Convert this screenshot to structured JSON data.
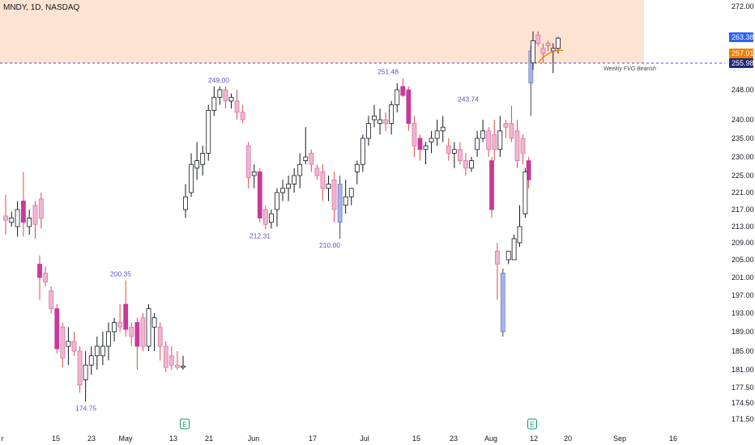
{
  "header": {
    "ticker": "MNDY, 1D, NASDAQ"
  },
  "colors": {
    "up_body": "#ffffff",
    "up_border": "#131722",
    "down_dark": "#c8399a",
    "down_light": "#f2b5d0",
    "blue_body": "#a5b3e6",
    "wick_red": "#e04a4a",
    "zone_fill": "#fde3d2",
    "dash_line": "#4a4ad6",
    "tag_blue": "#2962ff",
    "tag_orange": "#f57c00",
    "tag_navy": "#1e2a78",
    "earn_green": "#0b9a6e"
  },
  "chart_data": {
    "type": "candlestick",
    "title": "MNDY, 1D, NASDAQ",
    "y_axis": {
      "ticks": [
        "272.00",
        "263.38",
        "257.01",
        "255.98",
        "248.00",
        "240.00",
        "235.00",
        "230.00",
        "225.00",
        "221.00",
        "217.00",
        "213.00",
        "209.00",
        "205.00",
        "201.00",
        "197.00",
        "193.00",
        "189.00",
        "185.00",
        "181.00",
        "177.50",
        "174.50",
        "171.50"
      ]
    },
    "x_axis": {
      "ticks": [
        "r",
        "15",
        "23",
        "May",
        "13",
        "21",
        "Jun",
        "17",
        "Jul",
        "15",
        "23",
        "Aug",
        "12",
        "20",
        "Sep",
        "16"
      ]
    },
    "candles": [
      {
        "o": 215.5,
        "h": 220.5,
        "l": 211,
        "c": 214.5,
        "t": "dl"
      },
      {
        "o": 214,
        "h": 216.5,
        "l": 213,
        "c": 215,
        "t": "u"
      },
      {
        "o": 213,
        "h": 219,
        "l": 210.5,
        "c": 217,
        "t": "u"
      },
      {
        "o": 219,
        "h": 226,
        "l": 210.5,
        "c": 214,
        "t": "dd"
      },
      {
        "o": 213,
        "h": 217,
        "l": 211,
        "c": 215,
        "t": "u"
      },
      {
        "o": 218,
        "h": 219,
        "l": 210,
        "c": 213.5,
        "t": "dl"
      },
      {
        "o": 215,
        "h": 221,
        "l": 212.5,
        "c": 219.5,
        "t": "dl"
      },
      {
        "o": 204,
        "h": 206,
        "l": 196,
        "c": 201,
        "t": "dd"
      },
      {
        "o": 202,
        "h": 203.5,
        "l": 199,
        "c": 200,
        "t": "dl"
      },
      {
        "o": 198,
        "h": 199,
        "l": 193,
        "c": 194,
        "t": "dl"
      },
      {
        "o": 194,
        "h": 195,
        "l": 184.5,
        "c": 185.5,
        "t": "dd"
      },
      {
        "o": 190,
        "h": 191,
        "l": 181.5,
        "c": 183.5,
        "t": "dl"
      },
      {
        "o": 186,
        "h": 190,
        "l": 182,
        "c": 187,
        "t": "u"
      },
      {
        "o": 187,
        "h": 189,
        "l": 184,
        "c": 185,
        "t": "dl"
      },
      {
        "o": 185,
        "h": 186,
        "l": 176.5,
        "c": 178,
        "t": "dl"
      },
      {
        "o": 179,
        "h": 185,
        "l": 174.75,
        "c": 182,
        "t": "u"
      },
      {
        "o": 182,
        "h": 186,
        "l": 180,
        "c": 184,
        "t": "u"
      },
      {
        "o": 184,
        "h": 188,
        "l": 181,
        "c": 186,
        "t": "u"
      },
      {
        "o": 186,
        "h": 189,
        "l": 182,
        "c": 184,
        "t": "u"
      },
      {
        "o": 186,
        "h": 191,
        "l": 183,
        "c": 189,
        "t": "u"
      },
      {
        "o": 189,
        "h": 192,
        "l": 187,
        "c": 191,
        "t": "u"
      },
      {
        "o": 191,
        "h": 195,
        "l": 189,
        "c": 190,
        "t": "dl"
      },
      {
        "o": 195,
        "h": 200.35,
        "l": 188,
        "c": 189.5,
        "t": "dd"
      },
      {
        "o": 190,
        "h": 191,
        "l": 186,
        "c": 188,
        "t": "dl"
      },
      {
        "o": 191,
        "h": 192,
        "l": 181,
        "c": 186,
        "t": "dd"
      },
      {
        "o": 192,
        "h": 193,
        "l": 185,
        "c": 186,
        "t": "dl"
      },
      {
        "o": 186,
        "h": 195,
        "l": 185,
        "c": 194,
        "t": "u"
      },
      {
        "o": 190,
        "h": 193,
        "l": 185,
        "c": 192,
        "t": "u"
      },
      {
        "o": 190,
        "h": 191,
        "l": 183,
        "c": 186,
        "t": "dl"
      },
      {
        "o": 186,
        "h": 187,
        "l": 180.5,
        "c": 181.5,
        "t": "dl"
      },
      {
        "o": 184,
        "h": 186,
        "l": 181,
        "c": 182,
        "t": "dl"
      },
      {
        "o": 182,
        "h": 185,
        "l": 181,
        "c": 181.5,
        "t": "dl"
      },
      {
        "o": 181.5,
        "h": 184,
        "l": 181,
        "c": 181.8,
        "t": "u"
      },
      {
        "o": 217,
        "h": 223,
        "l": 215,
        "c": 220,
        "t": "u"
      },
      {
        "o": 221,
        "h": 231,
        "l": 220,
        "c": 228,
        "t": "u"
      },
      {
        "o": 227,
        "h": 234,
        "l": 224,
        "c": 229,
        "t": "u"
      },
      {
        "o": 228,
        "h": 233,
        "l": 225,
        "c": 231,
        "t": "u"
      },
      {
        "o": 231,
        "h": 244,
        "l": 229,
        "c": 242.5,
        "t": "u"
      },
      {
        "o": 242.5,
        "h": 249,
        "l": 241,
        "c": 246,
        "t": "u"
      },
      {
        "o": 246,
        "h": 249,
        "l": 244,
        "c": 248,
        "t": "u"
      },
      {
        "o": 248,
        "h": 249,
        "l": 243,
        "c": 245,
        "t": "dl"
      },
      {
        "o": 245,
        "h": 247,
        "l": 243,
        "c": 246,
        "t": "u"
      },
      {
        "o": 245,
        "h": 248,
        "l": 240,
        "c": 242,
        "t": "dl"
      },
      {
        "o": 242,
        "h": 244,
        "l": 239,
        "c": 240,
        "t": "dl"
      },
      {
        "o": 233,
        "h": 234,
        "l": 222,
        "c": 224.5,
        "t": "dl"
      },
      {
        "o": 226,
        "h": 228,
        "l": 222,
        "c": 225,
        "t": "u"
      },
      {
        "o": 226,
        "h": 227,
        "l": 214,
        "c": 215,
        "t": "dd"
      },
      {
        "o": 217,
        "h": 218,
        "l": 212.31,
        "c": 213.5,
        "t": "dl"
      },
      {
        "o": 214,
        "h": 217,
        "l": 212.5,
        "c": 216,
        "t": "u"
      },
      {
        "o": 217,
        "h": 222,
        "l": 213,
        "c": 221,
        "t": "u"
      },
      {
        "o": 221,
        "h": 224,
        "l": 219,
        "c": 222,
        "t": "u"
      },
      {
        "o": 222,
        "h": 225,
        "l": 219,
        "c": 223,
        "t": "u"
      },
      {
        "o": 223,
        "h": 227,
        "l": 221,
        "c": 225,
        "t": "u"
      },
      {
        "o": 225,
        "h": 231,
        "l": 222,
        "c": 228,
        "t": "u"
      },
      {
        "o": 229,
        "h": 238,
        "l": 228,
        "c": 230,
        "t": "u"
      },
      {
        "o": 231,
        "h": 232,
        "l": 226,
        "c": 228,
        "t": "dl"
      },
      {
        "o": 227,
        "h": 228,
        "l": 224,
        "c": 225,
        "t": "dl"
      },
      {
        "o": 226,
        "h": 228,
        "l": 219,
        "c": 222,
        "t": "dl"
      },
      {
        "o": 222,
        "h": 225,
        "l": 219,
        "c": 223,
        "t": "u"
      },
      {
        "o": 224,
        "h": 226,
        "l": 214,
        "c": 217,
        "t": "dl"
      },
      {
        "o": 223,
        "h": 225,
        "l": 210,
        "c": 214,
        "t": "bl"
      },
      {
        "o": 218,
        "h": 224,
        "l": 216,
        "c": 220,
        "t": "u"
      },
      {
        "o": 220,
        "h": 222,
        "l": 218,
        "c": 222,
        "t": "u"
      },
      {
        "o": 226,
        "h": 229,
        "l": 223,
        "c": 228,
        "t": "u"
      },
      {
        "o": 228,
        "h": 236,
        "l": 226,
        "c": 235,
        "t": "u"
      },
      {
        "o": 235,
        "h": 241,
        "l": 233,
        "c": 239,
        "t": "u"
      },
      {
        "o": 240,
        "h": 244,
        "l": 238,
        "c": 241,
        "t": "u"
      },
      {
        "o": 239,
        "h": 243,
        "l": 236,
        "c": 240,
        "t": "u"
      },
      {
        "o": 240,
        "h": 242,
        "l": 237,
        "c": 239,
        "t": "dl"
      },
      {
        "o": 239,
        "h": 245,
        "l": 236,
        "c": 244,
        "t": "u"
      },
      {
        "o": 244,
        "h": 250,
        "l": 242,
        "c": 248,
        "t": "u"
      },
      {
        "o": 249,
        "h": 251.48,
        "l": 246,
        "c": 246.5,
        "t": "dd"
      },
      {
        "o": 248,
        "h": 249,
        "l": 237,
        "c": 239,
        "t": "dd"
      },
      {
        "o": 239,
        "h": 241,
        "l": 230,
        "c": 233,
        "t": "dl"
      },
      {
        "o": 235,
        "h": 236,
        "l": 229,
        "c": 232,
        "t": "dd"
      },
      {
        "o": 232,
        "h": 234,
        "l": 228,
        "c": 233,
        "t": "u"
      },
      {
        "o": 234,
        "h": 237,
        "l": 231,
        "c": 235,
        "t": "u"
      },
      {
        "o": 235,
        "h": 240,
        "l": 233,
        "c": 237,
        "t": "u"
      },
      {
        "o": 237,
        "h": 241,
        "l": 234,
        "c": 238,
        "t": "u"
      },
      {
        "o": 233,
        "h": 235,
        "l": 229,
        "c": 231,
        "t": "dl"
      },
      {
        "o": 231,
        "h": 234,
        "l": 227,
        "c": 232,
        "t": "u"
      },
      {
        "o": 232,
        "h": 234,
        "l": 228,
        "c": 229,
        "t": "dl"
      },
      {
        "o": 229,
        "h": 231,
        "l": 225,
        "c": 227,
        "t": "dl"
      },
      {
        "o": 227,
        "h": 230,
        "l": 226,
        "c": 229,
        "t": "u"
      },
      {
        "o": 232,
        "h": 237,
        "l": 230,
        "c": 235,
        "t": "u"
      },
      {
        "o": 235,
        "h": 240,
        "l": 234,
        "c": 237,
        "t": "u"
      },
      {
        "o": 237,
        "h": 238,
        "l": 230,
        "c": 232,
        "t": "dl"
      },
      {
        "o": 236,
        "h": 240,
        "l": 229,
        "c": 232,
        "t": "dl"
      },
      {
        "o": 232,
        "h": 241,
        "l": 230,
        "c": 237,
        "t": "u"
      },
      {
        "o": 238,
        "h": 240,
        "l": 235,
        "c": 239,
        "t": "dl"
      },
      {
        "o": 239,
        "h": 243.74,
        "l": 234,
        "c": 235,
        "t": "dl"
      },
      {
        "o": 237,
        "h": 240,
        "l": 227,
        "c": 229,
        "t": "dl"
      },
      {
        "o": 235,
        "h": 236,
        "l": 228,
        "c": 231,
        "t": "dl"
      },
      {
        "o": 229,
        "h": 230,
        "l": 222,
        "c": 224,
        "t": "dd"
      },
      {
        "o": 229,
        "h": 230,
        "l": 215,
        "c": 217,
        "t": "dd"
      },
      {
        "o": 207,
        "h": 209,
        "l": 196,
        "c": 204,
        "t": "dl"
      },
      {
        "o": 202,
        "h": 203,
        "l": 188,
        "c": 189,
        "t": "bl"
      },
      {
        "o": 205,
        "h": 207,
        "l": 204,
        "c": 207,
        "t": "u"
      },
      {
        "o": 205,
        "h": 211,
        "l": 205,
        "c": 210,
        "t": "u"
      },
      {
        "o": 209,
        "h": 218,
        "l": 208,
        "c": 213,
        "t": "u"
      },
      {
        "o": 216,
        "h": 227,
        "l": 215,
        "c": 226,
        "t": "u"
      },
      {
        "o": 258,
        "h": 260,
        "l": 241,
        "c": 250,
        "t": "bl"
      },
      {
        "o": 256,
        "h": 265,
        "l": 254,
        "c": 262,
        "t": "u"
      },
      {
        "o": 264,
        "h": 265,
        "l": 260,
        "c": 261,
        "t": "dl"
      },
      {
        "o": 259,
        "h": 261,
        "l": 256,
        "c": 257,
        "t": "dl"
      },
      {
        "o": 260,
        "h": 262,
        "l": 258,
        "c": 261,
        "t": "dl"
      },
      {
        "o": 259,
        "h": 261,
        "l": 253,
        "c": 258,
        "t": "u"
      },
      {
        "o": 259,
        "h": 263.5,
        "l": 257,
        "c": 263,
        "t": "u"
      }
    ],
    "annotations": [
      {
        "label": "249.00",
        "price": 249
      },
      {
        "label": "212.31",
        "price": 212.31
      },
      {
        "label": "210.00",
        "price": 210
      },
      {
        "label": "251.48",
        "price": 251.48
      },
      {
        "label": "243.74",
        "price": 243.74
      },
      {
        "label": "200.35",
        "price": 200.35
      },
      {
        "label": "174.75",
        "price": 174.75
      }
    ],
    "zone": {
      "top": 272,
      "bottom": 255.98,
      "label": "Weekly FVG Bearish"
    },
    "price_tags": [
      {
        "label": "263.38",
        "price": 263.38,
        "color": "tag_blue"
      },
      {
        "label": "257.01",
        "price": 257.01,
        "color": "tag_orange"
      },
      {
        "label": "255.98",
        "price": 255.98,
        "color": "tag_navy"
      }
    ],
    "earnings_markers": [
      "E",
      "E"
    ]
  }
}
